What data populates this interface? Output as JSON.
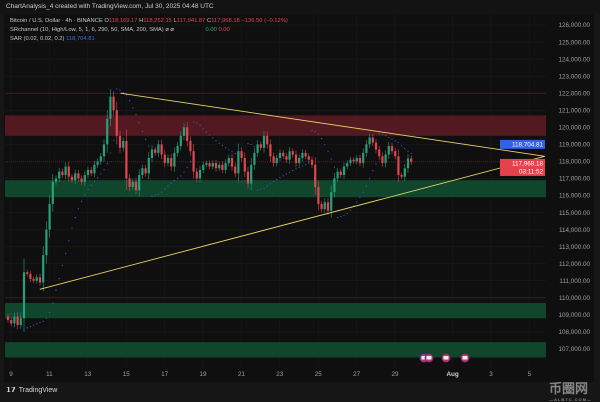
{
  "header": {
    "title": "ChartAnalysis_4 created with TradingView.com, Jul 30, 2025 04:48 UTC"
  },
  "legend": {
    "symbol": "Bitcoin / U.S. Dollar · 4h · BINANCE",
    "open_label": "O",
    "open": "118,169.17",
    "high_label": "H",
    "high": "118,252.15",
    "low_label": "L",
    "low": "117,941.87",
    "close_label": "C",
    "close": "117,968.18",
    "change": "−136.50 (−0.12%)",
    "srchannel": "SRchannel (10, High/Low, 5, 1, 6, 290, 50, SMA, 200, SMA)  ⌀  ⌀",
    "sr_val1": "0.00",
    "sr_val2": "0.00",
    "sar": "SAR (0.02, 0.02, 0.2)",
    "sar_value": "118,704.81"
  },
  "footer": {
    "brand": "TradingView"
  },
  "watermark": {
    "text": "币圈网",
    "sub": "—ALBTC.COM—"
  },
  "colors": {
    "up": "#26a17b",
    "down": "#e0474f",
    "resistance_zone": "#5a1c22",
    "support_zone": "#0f4d30",
    "trendline": "#e9d46a",
    "sar": "#3d5bd8",
    "sar_badge": "#2f62e6",
    "price_badge": "#e5414d"
  },
  "chart_data": {
    "type": "candlestick",
    "timeframe": "4h",
    "yaxis": {
      "ylim": [
        106300,
        126500
      ],
      "ticks": [
        "126,000.00",
        "125,000.00",
        "124,000.00",
        "123,000.00",
        "122,000.00",
        "121,000.00",
        "120,000.00",
        "119,000.00",
        "118,000.00",
        "117,000.00",
        "116,000.00",
        "115,000.00",
        "114,000.00",
        "113,000.00",
        "112,000.00",
        "111,000.00",
        "110,000.00",
        "109,000.00",
        "108,000.00",
        "107,000.00"
      ],
      "tick_values": [
        126000,
        125000,
        124000,
        123000,
        122000,
        121000,
        120000,
        119000,
        118000,
        117000,
        116000,
        115000,
        114000,
        113000,
        112000,
        111000,
        110000,
        109000,
        108000,
        107000
      ]
    },
    "xaxis": {
      "ticks": [
        "9",
        "11",
        "13",
        "15",
        "17",
        "19",
        "21",
        "23",
        "25",
        "27",
        "29",
        "Aug",
        "3",
        "5"
      ],
      "tick_days": [
        9,
        11,
        13,
        15,
        17,
        19,
        21,
        23,
        25,
        27,
        29,
        32,
        34,
        36
      ]
    },
    "first_candle": "Jul 8 20:00",
    "closes": [
      108700,
      108500,
      108900,
      108400,
      108800,
      111500,
      111400,
      111100,
      111000,
      111200,
      110900,
      112500,
      114000,
      115500,
      116800,
      117000,
      117400,
      117200,
      117700,
      117100,
      116900,
      117300,
      117000,
      116800,
      117200,
      117500,
      117300,
      117800,
      118000,
      118300,
      119000,
      120500,
      121800,
      121000,
      119500,
      118800,
      119200,
      117000,
      116500,
      116800,
      116300,
      117200,
      117600,
      117300,
      118200,
      118700,
      118500,
      119000,
      118400,
      117900,
      118200,
      117700,
      118500,
      118900,
      119500,
      120000,
      119200,
      118600,
      117400,
      117000,
      117500,
      117800,
      117900,
      117700,
      117900,
      117600,
      117800,
      117500,
      117900,
      118200,
      117700,
      117300,
      118600,
      118200,
      117400,
      116700,
      117800,
      118500,
      119000,
      118800,
      119500,
      119000,
      118300,
      117900,
      118200,
      118500,
      118300,
      118100,
      118600,
      118400,
      117900,
      118200,
      118500,
      118300,
      118100,
      117800,
      116500,
      115500,
      115200,
      115600,
      115100,
      116200,
      117000,
      117400,
      117200,
      117700,
      117900,
      118100,
      118000,
      118200,
      117900,
      118500,
      119000,
      119400,
      119100,
      118700,
      118300,
      117900,
      118400,
      118900,
      118600,
      118300,
      117200,
      117100,
      117600,
      118169,
      117968
    ],
    "zones": [
      {
        "kind": "resistance",
        "from": 119500,
        "to": 120700
      },
      {
        "kind": "support",
        "from": 115900,
        "to": 116900
      },
      {
        "kind": "support",
        "from": 108800,
        "to": 109700
      },
      {
        "kind": "support",
        "from": 106500,
        "to": 107400
      }
    ],
    "levels": [
      122000,
      110000
    ],
    "trendlines": [
      {
        "name": "upper",
        "from": {
          "day": 14.7,
          "price": 122000
        },
        "to": {
          "day": 36.8,
          "price": 118300
        }
      },
      {
        "name": "lower",
        "from": {
          "day": 10.5,
          "price": 110500
        },
        "to": {
          "day": 36.8,
          "price": 118300
        }
      }
    ],
    "sar_value": "118,704.81",
    "last_price": "117,968.18",
    "countdown": "03:11:52"
  }
}
